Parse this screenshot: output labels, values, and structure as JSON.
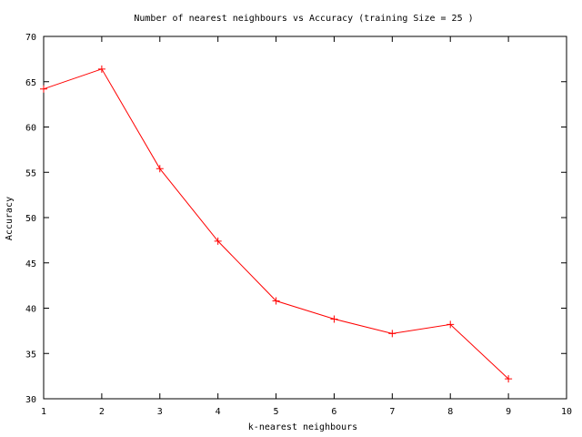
{
  "chart_data": {
    "type": "line",
    "title": "Number of nearest neighbours vs Accuracy (training Size = 25 )",
    "xlabel": "k-nearest neighbours",
    "ylabel": "Accuracy",
    "xlim": [
      1,
      10
    ],
    "ylim": [
      30,
      70
    ],
    "xticks": [
      1,
      2,
      3,
      4,
      5,
      6,
      7,
      8,
      9,
      10
    ],
    "yticks": [
      30,
      35,
      40,
      45,
      50,
      55,
      60,
      65,
      70
    ],
    "grid": false,
    "legend": "none",
    "series": [
      {
        "color": "#ff0000",
        "marker": "plus",
        "x": [
          1,
          2,
          3,
          4,
          5,
          6,
          7,
          8,
          9
        ],
        "y": [
          64.2,
          66.4,
          55.4,
          47.4,
          40.8,
          38.8,
          37.2,
          38.2,
          32.2
        ]
      }
    ]
  }
}
